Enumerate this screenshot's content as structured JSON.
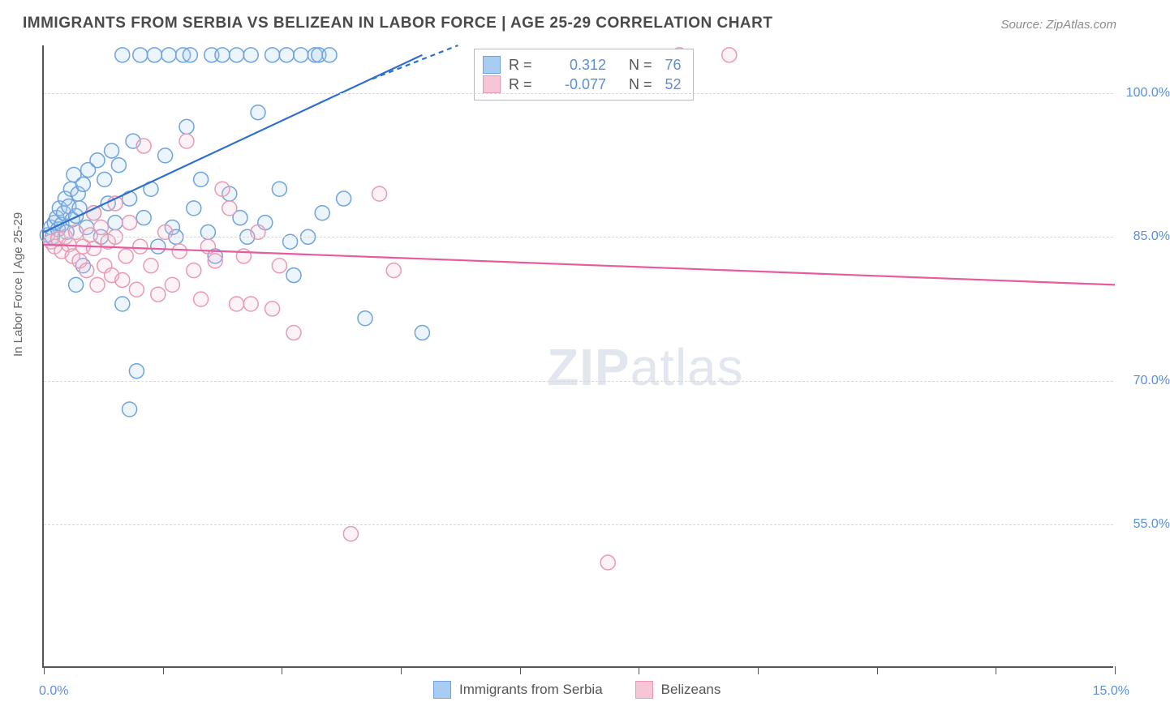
{
  "title": "IMMIGRANTS FROM SERBIA VS BELIZEAN IN LABOR FORCE | AGE 25-29 CORRELATION CHART",
  "source": "Source: ZipAtlas.com",
  "ylabel": "In Labor Force | Age 25-29",
  "xaxis_min_label": "0.0%",
  "xaxis_max_label": "15.0%",
  "watermark_zip": "ZIP",
  "watermark_atlas": "atlas",
  "chart": {
    "type": "scatter",
    "background_color": "#ffffff",
    "grid_color": "#d8d8d8",
    "axis_color": "#555555",
    "label_color": "#5b8fd6",
    "xlim": [
      0,
      15
    ],
    "ylim": [
      40,
      105
    ],
    "y_ticks": [
      55,
      70,
      85,
      100
    ],
    "y_tick_labels": [
      "55.0%",
      "70.0%",
      "85.0%",
      "100.0%"
    ],
    "x_ticks": [
      0,
      1.67,
      3.33,
      5.0,
      6.67,
      8.33,
      10.0,
      11.67,
      13.33,
      15.0
    ],
    "marker_radius": 9,
    "marker_stroke_width": 1.5,
    "marker_fill_opacity": 0.22,
    "line_width": 2.2,
    "series": [
      {
        "name": "Immigrants from Serbia",
        "color_stroke": "#6fa3e0",
        "color_fill": "#a9cdf2",
        "line_color": "#2d6fcf",
        "R": "0.312",
        "N": "76",
        "trend": {
          "x1": 0.0,
          "y1": 85.5,
          "x2": 5.3,
          "y2": 104.0
        },
        "trend_dash": {
          "x1": 4.6,
          "y1": 101.5,
          "x2": 5.8,
          "y2": 105.0
        },
        "points": [
          [
            0.05,
            85.2
          ],
          [
            0.1,
            86.0
          ],
          [
            0.12,
            85.0
          ],
          [
            0.15,
            86.5
          ],
          [
            0.18,
            87.0
          ],
          [
            0.2,
            85.8
          ],
          [
            0.22,
            88.0
          ],
          [
            0.25,
            86.3
          ],
          [
            0.28,
            87.5
          ],
          [
            0.3,
            89.0
          ],
          [
            0.32,
            85.5
          ],
          [
            0.35,
            88.2
          ],
          [
            0.38,
            90.0
          ],
          [
            0.4,
            86.8
          ],
          [
            0.42,
            91.5
          ],
          [
            0.45,
            87.2
          ],
          [
            0.48,
            89.5
          ],
          [
            0.5,
            88.0
          ],
          [
            0.55,
            90.5
          ],
          [
            0.6,
            86.0
          ],
          [
            0.62,
            92.0
          ],
          [
            0.7,
            87.5
          ],
          [
            0.75,
            93.0
          ],
          [
            0.8,
            85.0
          ],
          [
            0.85,
            91.0
          ],
          [
            0.9,
            88.5
          ],
          [
            0.95,
            94.0
          ],
          [
            1.0,
            86.5
          ],
          [
            1.05,
            92.5
          ],
          [
            1.1,
            78.0
          ],
          [
            1.1,
            104.0
          ],
          [
            1.2,
            67.0
          ],
          [
            1.2,
            89.0
          ],
          [
            1.25,
            95.0
          ],
          [
            1.3,
            71.0
          ],
          [
            1.35,
            104.0
          ],
          [
            1.4,
            87.0
          ],
          [
            1.5,
            90.0
          ],
          [
            1.55,
            104.0
          ],
          [
            1.6,
            84.0
          ],
          [
            1.7,
            93.5
          ],
          [
            1.75,
            104.0
          ],
          [
            1.8,
            86.0
          ],
          [
            1.85,
            85.0
          ],
          [
            1.95,
            104.0
          ],
          [
            2.0,
            96.5
          ],
          [
            2.05,
            104.0
          ],
          [
            2.1,
            88.0
          ],
          [
            2.2,
            91.0
          ],
          [
            2.3,
            85.5
          ],
          [
            2.35,
            104.0
          ],
          [
            2.4,
            83.0
          ],
          [
            2.5,
            104.0
          ],
          [
            2.6,
            89.5
          ],
          [
            2.7,
            104.0
          ],
          [
            2.75,
            87.0
          ],
          [
            2.85,
            85.0
          ],
          [
            2.9,
            104.0
          ],
          [
            3.0,
            98.0
          ],
          [
            3.1,
            86.5
          ],
          [
            3.2,
            104.0
          ],
          [
            3.3,
            90.0
          ],
          [
            3.4,
            104.0
          ],
          [
            3.45,
            84.5
          ],
          [
            3.5,
            81.0
          ],
          [
            3.6,
            104.0
          ],
          [
            3.7,
            85.0
          ],
          [
            3.8,
            104.0
          ],
          [
            3.85,
            104.0
          ],
          [
            3.9,
            87.5
          ],
          [
            4.0,
            104.0
          ],
          [
            4.2,
            89.0
          ],
          [
            4.5,
            76.5
          ],
          [
            5.3,
            75.0
          ],
          [
            0.45,
            80.0
          ],
          [
            0.55,
            82.0
          ]
        ]
      },
      {
        "name": "Belizeans",
        "color_stroke": "#e89ab5",
        "color_fill": "#f6c6d6",
        "line_color": "#e65c9c",
        "R": "-0.077",
        "N": "52",
        "trend": {
          "x1": 0.0,
          "y1": 84.2,
          "x2": 15.0,
          "y2": 80.0
        },
        "points": [
          [
            0.1,
            84.5
          ],
          [
            0.15,
            84.0
          ],
          [
            0.2,
            84.8
          ],
          [
            0.25,
            83.5
          ],
          [
            0.3,
            85.0
          ],
          [
            0.35,
            84.2
          ],
          [
            0.4,
            83.0
          ],
          [
            0.45,
            85.5
          ],
          [
            0.5,
            82.5
          ],
          [
            0.55,
            84.0
          ],
          [
            0.6,
            81.5
          ],
          [
            0.65,
            85.2
          ],
          [
            0.7,
            83.8
          ],
          [
            0.75,
            80.0
          ],
          [
            0.8,
            86.0
          ],
          [
            0.85,
            82.0
          ],
          [
            0.9,
            84.5
          ],
          [
            0.95,
            81.0
          ],
          [
            1.0,
            85.0
          ],
          [
            1.1,
            80.5
          ],
          [
            1.15,
            83.0
          ],
          [
            1.2,
            86.5
          ],
          [
            1.3,
            79.5
          ],
          [
            1.35,
            84.0
          ],
          [
            1.4,
            94.5
          ],
          [
            1.5,
            82.0
          ],
          [
            1.6,
            79.0
          ],
          [
            1.7,
            85.5
          ],
          [
            1.8,
            80.0
          ],
          [
            1.9,
            83.5
          ],
          [
            2.0,
            95.0
          ],
          [
            2.1,
            81.5
          ],
          [
            2.2,
            78.5
          ],
          [
            2.3,
            84.0
          ],
          [
            2.4,
            82.5
          ],
          [
            2.6,
            88.0
          ],
          [
            2.7,
            78.0
          ],
          [
            2.8,
            83.0
          ],
          [
            2.9,
            78.0
          ],
          [
            3.0,
            85.5
          ],
          [
            3.2,
            77.5
          ],
          [
            3.3,
            82.0
          ],
          [
            3.5,
            75.0
          ],
          [
            4.3,
            54.0
          ],
          [
            4.7,
            89.5
          ],
          [
            4.9,
            81.5
          ],
          [
            7.9,
            51.0
          ],
          [
            8.9,
            104.0
          ],
          [
            9.6,
            104.0
          ],
          [
            2.5,
            90.0
          ],
          [
            0.7,
            87.5
          ],
          [
            1.0,
            88.5
          ]
        ]
      }
    ]
  },
  "bottom_legend": [
    {
      "label": "Immigrants from Serbia",
      "stroke": "#6fa3e0",
      "fill": "#a9cdf2"
    },
    {
      "label": "Belizeans",
      "stroke": "#e89ab5",
      "fill": "#f6c6d6"
    }
  ]
}
